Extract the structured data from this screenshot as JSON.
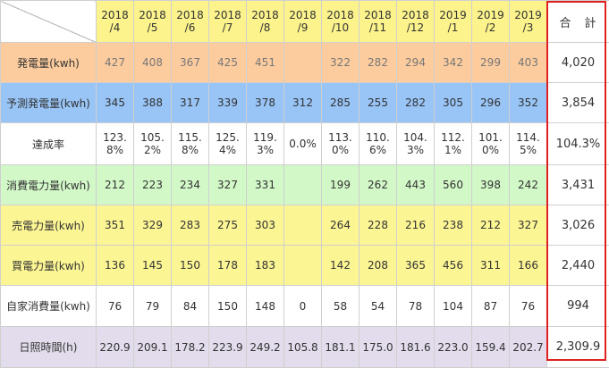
{
  "header": {
    "months": [
      {
        "year": "2018",
        "month": "/4"
      },
      {
        "year": "2018",
        "month": "/5"
      },
      {
        "year": "2018",
        "month": "/6"
      },
      {
        "year": "2018",
        "month": "/7"
      },
      {
        "year": "2018",
        "month": "/8"
      },
      {
        "year": "2018",
        "month": "/9"
      },
      {
        "year": "2018",
        "month": "/10"
      },
      {
        "year": "2018",
        "month": "/11"
      },
      {
        "year": "2018",
        "month": "/12"
      },
      {
        "year": "2019",
        "month": "/1"
      },
      {
        "year": "2019",
        "month": "/2"
      },
      {
        "year": "2019",
        "month": "/3"
      }
    ],
    "total_label": "合　計"
  },
  "colors": {
    "header_yellow": "#fcf38c",
    "total_frame": "#e02020"
  },
  "rows": [
    {
      "label": "発電量(kwh)",
      "bg": "#fccc9e",
      "muted": true,
      "values": [
        [
          "427"
        ],
        [
          "408"
        ],
        [
          "367"
        ],
        [
          "425"
        ],
        [
          "451"
        ],
        [
          ""
        ],
        [
          "322"
        ],
        [
          "282"
        ],
        [
          "294"
        ],
        [
          "342"
        ],
        [
          "299"
        ],
        [
          "403"
        ]
      ],
      "total": "4,020"
    },
    {
      "label": "予測発電量(kwh)",
      "bg": "#98c4f6",
      "muted": false,
      "values": [
        [
          "345"
        ],
        [
          "388"
        ],
        [
          "317"
        ],
        [
          "339"
        ],
        [
          "378"
        ],
        [
          "312"
        ],
        [
          "285"
        ],
        [
          "255"
        ],
        [
          "282"
        ],
        [
          "305"
        ],
        [
          "296"
        ],
        [
          "352"
        ]
      ],
      "total": "3,854"
    },
    {
      "label": "達成率",
      "bg": "#ffffff",
      "muted": false,
      "values": [
        [
          "123.",
          "8%"
        ],
        [
          "105.",
          "2%"
        ],
        [
          "115.",
          "8%"
        ],
        [
          "125.",
          "4%"
        ],
        [
          "119.",
          "3%"
        ],
        [
          "0.0%"
        ],
        [
          "113.",
          "0%"
        ],
        [
          "110.",
          "6%"
        ],
        [
          "104.",
          "3%"
        ],
        [
          "112.",
          "1%"
        ],
        [
          "101.",
          "0%"
        ],
        [
          "114.",
          "5%"
        ]
      ],
      "total": "104.3%"
    },
    {
      "label": "消費電力量(kwh)",
      "bg": "#d2f8c8",
      "muted": false,
      "values": [
        [
          "212"
        ],
        [
          "223"
        ],
        [
          "234"
        ],
        [
          "327"
        ],
        [
          "331"
        ],
        [
          ""
        ],
        [
          "199"
        ],
        [
          "262"
        ],
        [
          "443"
        ],
        [
          "560"
        ],
        [
          "398"
        ],
        [
          "242"
        ]
      ],
      "total": "3,431"
    },
    {
      "label": "売電力量(kwh)",
      "bg": "#fcf594",
      "muted": false,
      "values": [
        [
          "351"
        ],
        [
          "329"
        ],
        [
          "283"
        ],
        [
          "275"
        ],
        [
          "303"
        ],
        [
          ""
        ],
        [
          "264"
        ],
        [
          "228"
        ],
        [
          "216"
        ],
        [
          "238"
        ],
        [
          "212"
        ],
        [
          "327"
        ]
      ],
      "total": "3,026"
    },
    {
      "label": "買電力量(kwh)",
      "bg": "#fcf594",
      "muted": false,
      "values": [
        [
          "136"
        ],
        [
          "145"
        ],
        [
          "150"
        ],
        [
          "178"
        ],
        [
          "183"
        ],
        [
          ""
        ],
        [
          "142"
        ],
        [
          "208"
        ],
        [
          "365"
        ],
        [
          "456"
        ],
        [
          "311"
        ],
        [
          "166"
        ]
      ],
      "total": "2,440"
    },
    {
      "label": "自家消費量(kwh)",
      "bg": "#ffffff",
      "muted": false,
      "values": [
        [
          "76"
        ],
        [
          "79"
        ],
        [
          "84"
        ],
        [
          "150"
        ],
        [
          "148"
        ],
        [
          "0"
        ],
        [
          "58"
        ],
        [
          "54"
        ],
        [
          "78"
        ],
        [
          "104"
        ],
        [
          "87"
        ],
        [
          "76"
        ]
      ],
      "total": "994"
    },
    {
      "label": "日照時間(h)",
      "bg": "#e2dcec",
      "muted": false,
      "values": [
        [
          "220.9"
        ],
        [
          "209.1"
        ],
        [
          "178.2"
        ],
        [
          "223.9"
        ],
        [
          "249.2"
        ],
        [
          "105.8"
        ],
        [
          "181.1"
        ],
        [
          "175.0"
        ],
        [
          "181.6"
        ],
        [
          "223.0"
        ],
        [
          "159.4"
        ],
        [
          "202.7"
        ]
      ],
      "total": "2,309.9"
    }
  ]
}
